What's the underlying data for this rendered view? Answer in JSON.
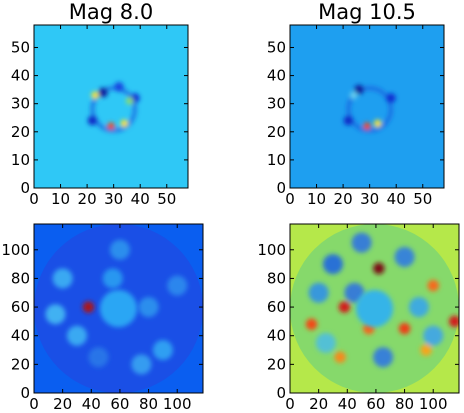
{
  "chart_data": [
    {
      "type": "heatmap",
      "title": "Mag 8.0",
      "colormap": "jet",
      "xlim": [
        0,
        58
      ],
      "ylim": [
        0,
        58
      ],
      "x_ticks": [
        "0",
        "10",
        "20",
        "30",
        "40",
        "50"
      ],
      "y_ticks": [
        "0",
        "10",
        "20",
        "30",
        "40",
        "50"
      ],
      "background_color": "#2fc8f6",
      "features": {
        "ring_center": [
          30,
          28
        ],
        "ring_radius": 8,
        "hot_spots": [
          [
            29,
            22,
            "#f24a14"
          ],
          [
            34,
            23,
            "#fde22a"
          ],
          [
            23,
            33,
            "#fde22a"
          ],
          [
            36,
            31,
            "#8ddd6a"
          ]
        ],
        "cold_spots": [
          [
            22,
            24,
            "#0b2bc7"
          ],
          [
            38,
            32,
            "#0e2fd1"
          ],
          [
            26,
            34,
            "#0a1f9a"
          ],
          [
            32,
            36,
            "#1245e0"
          ]
        ]
      }
    },
    {
      "type": "heatmap",
      "title": "Mag 10.5",
      "colormap": "jet",
      "xlim": [
        0,
        58
      ],
      "ylim": [
        0,
        58
      ],
      "x_ticks": [
        "0",
        "10",
        "20",
        "30",
        "40",
        "50"
      ],
      "y_ticks": [
        "0",
        "10",
        "20",
        "30",
        "40",
        "50"
      ],
      "background_color": "#1e9ff0",
      "features": {
        "ring_center": [
          30,
          28
        ],
        "ring_radius": 8,
        "hot_spots": [
          [
            29,
            22,
            "#f24a14"
          ],
          [
            33,
            23,
            "#fde22a"
          ],
          [
            24,
            33,
            "#6cd1f0"
          ]
        ],
        "cold_spots": [
          [
            22,
            24,
            "#0b2bc7"
          ],
          [
            38,
            32,
            "#0e2fd1"
          ],
          [
            26,
            35,
            "#0a1f9a"
          ]
        ]
      }
    },
    {
      "type": "heatmap",
      "title": "",
      "colormap": "jet",
      "xlim": [
        0,
        118
      ],
      "ylim": [
        0,
        118
      ],
      "x_ticks": [
        "0",
        "20",
        "40",
        "60",
        "80",
        "100"
      ],
      "y_ticks": [
        "0",
        "20",
        "40",
        "60",
        "80",
        "100"
      ],
      "background_color": "#0a5ef0",
      "disk_color": "#1a4fe6",
      "hole_color": "#2aa6f4",
      "features": {
        "disk_center": [
          59,
          59
        ],
        "disk_radius": 59,
        "hole_radius": 13,
        "hot_spots": [
          [
            38,
            60,
            "#a8121b"
          ]
        ],
        "blobs": [
          [
            20,
            80,
            "#3fb8f5"
          ],
          [
            30,
            40,
            "#3fb8f5"
          ],
          [
            55,
            80,
            "#29a3f2"
          ],
          [
            80,
            60,
            "#2d99ef"
          ],
          [
            90,
            30,
            "#33adf4"
          ],
          [
            60,
            100,
            "#2d99ef"
          ],
          [
            15,
            55,
            "#49c2f5"
          ],
          [
            100,
            75,
            "#2e8fee"
          ],
          [
            75,
            20,
            "#3aa9f2"
          ],
          [
            45,
            25,
            "#2c7be9"
          ]
        ]
      }
    },
    {
      "type": "heatmap",
      "title": "",
      "colormap": "jet",
      "xlim": [
        0,
        118
      ],
      "ylim": [
        0,
        118
      ],
      "x_ticks": [
        "0",
        "20",
        "40",
        "60",
        "80",
        "100"
      ],
      "y_ticks": [
        "0",
        "20",
        "40",
        "60",
        "80",
        "100"
      ],
      "background_color": "#b5e84a",
      "disk_color": "#86d96b",
      "hole_color": "#34b4e8",
      "features": {
        "disk_center": [
          59,
          59
        ],
        "disk_radius": 59,
        "hole_radius": 13,
        "hot_spots": [
          [
            62,
            87,
            "#7a0f12"
          ],
          [
            38,
            60,
            "#d21a1a"
          ],
          [
            15,
            48,
            "#f24a14"
          ],
          [
            115,
            50,
            "#d21a1a"
          ],
          [
            100,
            75,
            "#f56a1a"
          ],
          [
            35,
            25,
            "#f58a1a"
          ],
          [
            80,
            45,
            "#ee3d14"
          ],
          [
            55,
            45,
            "#f5631a"
          ],
          [
            95,
            30,
            "#f5a51a"
          ]
        ],
        "blobs": [
          [
            30,
            90,
            "#1a5fe8"
          ],
          [
            50,
            105,
            "#2a6ee8"
          ],
          [
            80,
            95,
            "#2a75ea"
          ],
          [
            20,
            70,
            "#2a8cef"
          ],
          [
            90,
            60,
            "#34a2f2"
          ],
          [
            65,
            25,
            "#2a72ea"
          ],
          [
            45,
            70,
            "#2b6ce8"
          ],
          [
            100,
            40,
            "#3aa1f2"
          ],
          [
            25,
            35,
            "#4bbce8"
          ]
        ]
      }
    }
  ]
}
